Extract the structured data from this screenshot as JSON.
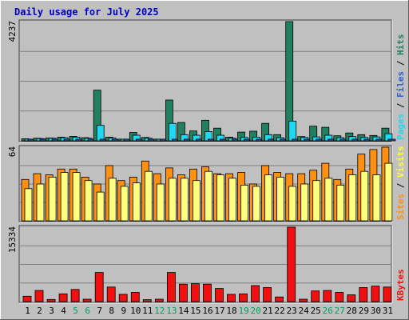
{
  "chart_data": {
    "type": "bar",
    "title": "Daily usage for July 2025",
    "days": [
      "1",
      "2",
      "3",
      "4",
      "5",
      "6",
      "7",
      "8",
      "9",
      "10",
      "11",
      "12",
      "13",
      "14",
      "15",
      "16",
      "17",
      "18",
      "19",
      "20",
      "21",
      "22",
      "23",
      "24",
      "25",
      "26",
      "27",
      "28",
      "29",
      "30",
      "31"
    ],
    "weekend_days": [
      "5",
      "6",
      "12",
      "13",
      "19",
      "20",
      "26",
      "27"
    ],
    "panels": [
      {
        "id": "hits-files-pages",
        "ymax_label": "4237",
        "ymax": 4237,
        "side_labels": [
          "Pages",
          "Files",
          "Hits"
        ],
        "series": [
          {
            "name": "Hits",
            "color": "#208060",
            "values": [
              70,
              90,
              100,
              130,
              160,
              110,
              1800,
              130,
              60,
              300,
              120,
              60,
              1450,
              650,
              350,
              730,
              450,
              130,
              310,
              340,
              620,
              220,
              4237,
              150,
              520,
              480,
              180,
              280,
              220,
              190,
              450
            ]
          },
          {
            "name": "Files",
            "color": "#20d8f0",
            "values": [
              60,
              80,
              90,
              110,
              130,
              90,
              550,
              100,
              50,
              200,
              90,
              50,
              620,
              220,
              200,
              330,
              200,
              90,
              120,
              130,
              220,
              110,
              700,
              120,
              140,
              200,
              110,
              150,
              120,
              140,
              250
            ]
          },
          {
            "name": "Pages",
            "color": "#3060d0",
            "values": [
              20,
              20,
              25,
              30,
              30,
              25,
              30,
              20,
              15,
              25,
              20,
              15,
              30,
              30,
              25,
              30,
              25,
              20,
              20,
              25,
              30,
              20,
              30,
              20,
              25,
              25,
              20,
              25,
              20,
              25,
              25
            ]
          }
        ]
      },
      {
        "id": "visits-sites",
        "ymax_label": "64",
        "ymax": 64,
        "side_labels": [
          "Sites",
          "Visits"
        ],
        "series": [
          {
            "name": "Sites",
            "color": "#ff9010",
            "values": [
              36,
              41,
              40,
              45,
              45,
              38,
              32,
              48,
              35,
              38,
              52,
              41,
              46,
              40,
              45,
              47,
              41,
              41,
              42,
              32,
              48,
              42,
              41,
              41,
              44,
              50,
              36,
              45,
              58,
              62,
              64
            ]
          },
          {
            "name": "Visits",
            "color": "#ffff80",
            "values": [
              28,
              32,
              38,
              42,
              42,
              35,
              25,
              37,
              30,
              33,
              43,
              32,
              37,
              37,
              35,
              43,
              40,
              37,
              31,
              30,
              40,
              38,
              30,
              32,
              35,
              37,
              31,
              40,
              43,
              40,
              50
            ]
          }
        ]
      },
      {
        "id": "kbytes",
        "ymax_label": "15334",
        "ymax": 15334,
        "side_labels": [
          "KBytes"
        ],
        "series": [
          {
            "name": "KBytes",
            "color": "#f01010",
            "values": [
              1100,
              2300,
              450,
              1600,
              2500,
              500,
              6000,
              3000,
              1500,
              1900,
              400,
              500,
              6000,
              3600,
              3700,
              3600,
              2700,
              1500,
              1600,
              3300,
              2900,
              960,
              15334,
              500,
              2200,
              2300,
              1900,
              1400,
              2900,
              3200,
              3000
            ]
          }
        ]
      }
    ]
  }
}
